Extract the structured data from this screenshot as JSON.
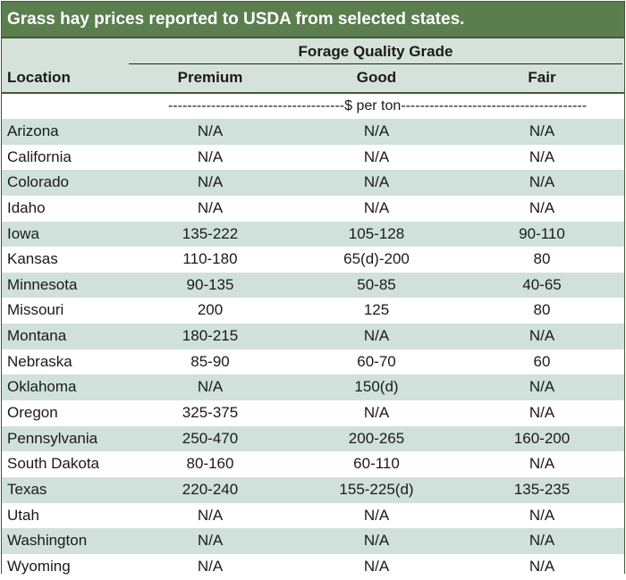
{
  "title": "Grass hay prices reported to USDA from selected states.",
  "header": {
    "group_label": "Forage Quality Grade",
    "location_label": "Location",
    "columns": [
      "Premium",
      "Good",
      "Fair"
    ],
    "units": "-------------------------------------$ per ton---------------------------------------"
  },
  "rows": [
    {
      "location": "Arizona",
      "premium": "N/A",
      "good": "N/A",
      "fair": "N/A"
    },
    {
      "location": "California",
      "premium": "N/A",
      "good": "N/A",
      "fair": "N/A"
    },
    {
      "location": "Colorado",
      "premium": "N/A",
      "good": "N/A",
      "fair": "N/A"
    },
    {
      "location": "Idaho",
      "premium": "N/A",
      "good": "N/A",
      "fair": "N/A"
    },
    {
      "location": "Iowa",
      "premium": "135-222",
      "good": "105-128",
      "fair": "90-110"
    },
    {
      "location": "Kansas",
      "premium": "110-180",
      "good": "65(d)-200",
      "fair": "80"
    },
    {
      "location": "Minnesota",
      "premium": "90-135",
      "good": "50-85",
      "fair": "40-65"
    },
    {
      "location": "Missouri",
      "premium": "200",
      "good": "125",
      "fair": "80"
    },
    {
      "location": "Montana",
      "premium": "180-215",
      "good": "N/A",
      "fair": "N/A"
    },
    {
      "location": "Nebraska",
      "premium": "85-90",
      "good": "60-70",
      "fair": "60"
    },
    {
      "location": "Oklahoma",
      "premium": "N/A",
      "good": "150(d)",
      "fair": "N/A"
    },
    {
      "location": "Oregon",
      "premium": "325-375",
      "good": "N/A",
      "fair": "N/A"
    },
    {
      "location": "Pennsylvania",
      "premium": "250-470",
      "good": "200-265",
      "fair": "160-200"
    },
    {
      "location": "South Dakota",
      "premium": "80-160",
      "good": "60-110",
      "fair": "N/A"
    },
    {
      "location": "Texas",
      "premium": "220-240",
      "good": "155-225(d)",
      "fair": "135-235"
    },
    {
      "location": "Utah",
      "premium": "N/A",
      "good": "N/A",
      "fair": "N/A"
    },
    {
      "location": "Washington",
      "premium": "N/A",
      "good": "N/A",
      "fair": "N/A"
    },
    {
      "location": "Wyoming",
      "premium": "N/A",
      "good": "N/A",
      "fair": "N/A"
    }
  ],
  "colors": {
    "title_bg": "#5b7e4f",
    "stripe": "#d0e1dc",
    "border": "#3f5a36"
  }
}
